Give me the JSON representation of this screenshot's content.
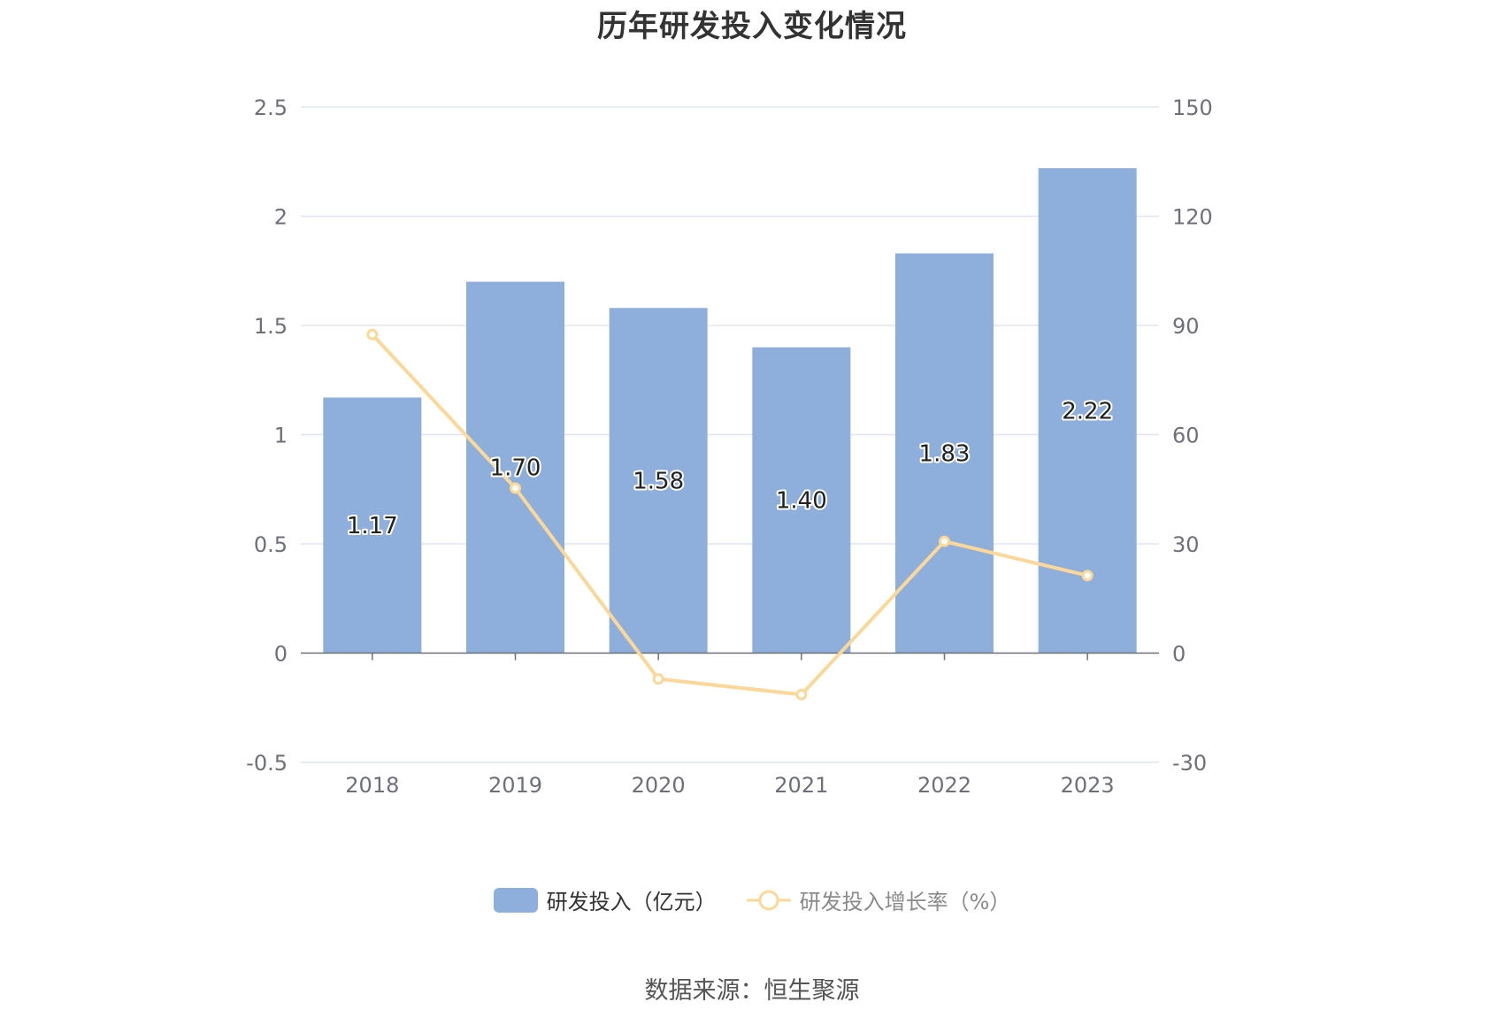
{
  "chart_data": {
    "type": "bar",
    "title": "历年研发投入变化情况",
    "categories": [
      "2018",
      "2019",
      "2020",
      "2021",
      "2022",
      "2023"
    ],
    "series": [
      {
        "name": "研发投入（亿元）",
        "type": "bar",
        "axis": "left",
        "values": [
          1.17,
          1.7,
          1.58,
          1.4,
          1.83,
          2.22
        ],
        "labels": [
          "1.17",
          "1.70",
          "1.58",
          "1.40",
          "1.83",
          "2.22"
        ],
        "color": "#8eaedb"
      },
      {
        "name": "研发投入增长率（%）",
        "type": "line",
        "axis": "right",
        "values": [
          87.5,
          45.3,
          -7.1,
          -11.4,
          30.7,
          21.3
        ],
        "color": "#fbd897"
      }
    ],
    "y_left": {
      "ylim": [
        -0.5,
        2.5
      ],
      "ticks": [
        "-0.5",
        "0",
        "0.5",
        "1",
        "1.5",
        "2",
        "2.5"
      ]
    },
    "y_right": {
      "ylim": [
        -30,
        150
      ],
      "ticks": [
        "-30",
        "0",
        "30",
        "60",
        "90",
        "120",
        "150"
      ]
    },
    "grid": true,
    "legend_position": "bottom"
  },
  "source_text": "数据来源：恒生聚源"
}
